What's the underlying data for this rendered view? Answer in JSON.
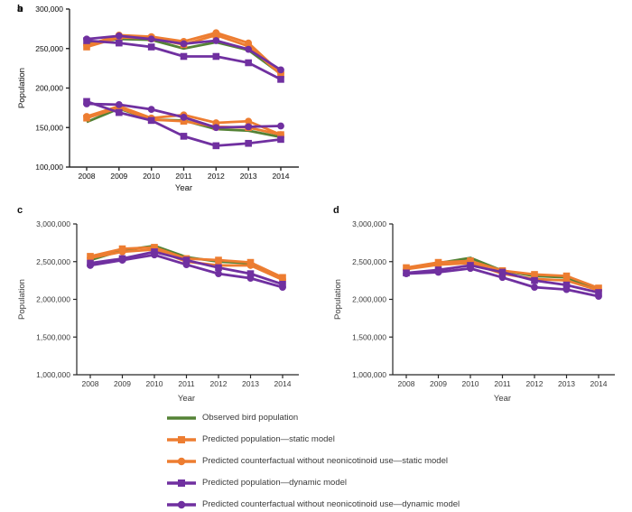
{
  "figure": {
    "xlabel": "Year",
    "ylabel": "Population",
    "colors": {
      "observed_green": "#548235",
      "static_orange": "#ED7D31",
      "dynamic_purple": "#7030A0",
      "axis": "#262626"
    }
  },
  "legend": {
    "items": [
      {
        "label": "Observed bird population",
        "color": "#548235",
        "marker": "none"
      },
      {
        "label": "Predicted population—static model",
        "color": "#ED7D31",
        "marker": "square"
      },
      {
        "label": "Predicted counterfactual without neonicotinoid use—static model",
        "color": "#ED7D31",
        "marker": "circle"
      },
      {
        "label": "Predicted population—dynamic model",
        "color": "#7030A0",
        "marker": "square"
      },
      {
        "label": "Predicted counterfactual without neonicotinoid use—dynamic model",
        "color": "#7030A0",
        "marker": "circle"
      }
    ]
  },
  "chart_data": [
    {
      "panel_label": "a",
      "type": "line",
      "xlabel": "Year",
      "ylabel": "Population",
      "x": [
        2008,
        2009,
        2010,
        2011,
        2012,
        2013,
        2014
      ],
      "ylim": [
        100000,
        300000
      ],
      "yticks": [
        100000,
        150000,
        200000,
        250000,
        300000
      ],
      "grid": false,
      "series": [
        {
          "name": "Observed bird population",
          "color": "#548235",
          "marker": "none",
          "values": [
            157000,
            174000,
            160000,
            159000,
            148000,
            146000,
            138000
          ]
        },
        {
          "name": "Predicted population—static model",
          "color": "#ED7D31",
          "marker": "square",
          "values": [
            162000,
            175000,
            160000,
            158000,
            151000,
            150000,
            141000
          ]
        },
        {
          "name": "Predicted counterfactual without neonicotinoid use—static model",
          "color": "#ED7D31",
          "marker": "circle",
          "values": [
            164000,
            177000,
            162000,
            166000,
            156000,
            158000,
            141000
          ]
        },
        {
          "name": "Predicted population—dynamic model",
          "color": "#7030A0",
          "marker": "square",
          "values": [
            183000,
            169000,
            159000,
            139000,
            127000,
            130000,
            135000
          ]
        },
        {
          "name": "Predicted counterfactual without neonicotinoid use—dynamic model",
          "color": "#7030A0",
          "marker": "circle",
          "values": [
            180000,
            179000,
            173000,
            163000,
            150000,
            151000,
            152000
          ]
        }
      ]
    },
    {
      "panel_label": "b",
      "type": "line",
      "xlabel": "Year",
      "ylabel": "Population",
      "x": [
        2008,
        2009,
        2010,
        2011,
        2012,
        2013,
        2014
      ],
      "ylim": [
        100000,
        300000
      ],
      "yticks": [
        100000,
        150000,
        200000,
        250000,
        300000
      ],
      "grid": false,
      "series": [
        {
          "name": "Observed bird population",
          "color": "#548235",
          "marker": "none",
          "values": [
            257000,
            262000,
            261000,
            250000,
            258000,
            248000,
            218000
          ]
        },
        {
          "name": "Predicted population—static model",
          "color": "#ED7D31",
          "marker": "square",
          "values": [
            252000,
            264000,
            263000,
            255000,
            267000,
            253000,
            217000
          ]
        },
        {
          "name": "Predicted counterfactual without neonicotinoid use—static model",
          "color": "#ED7D31",
          "marker": "circle",
          "values": [
            254000,
            267000,
            265000,
            259000,
            270000,
            257000,
            219000
          ]
        },
        {
          "name": "Predicted population—dynamic model",
          "color": "#7030A0",
          "marker": "square",
          "values": [
            260000,
            257000,
            252000,
            240000,
            240000,
            232000,
            211000
          ]
        },
        {
          "name": "Predicted counterfactual without neonicotinoid use—dynamic model",
          "color": "#7030A0",
          "marker": "circle",
          "values": [
            262000,
            266000,
            262000,
            256000,
            260000,
            249000,
            223000
          ]
        }
      ]
    },
    {
      "panel_label": "c",
      "type": "line",
      "xlabel": "Year",
      "ylabel": "Population",
      "x": [
        2008,
        2009,
        2010,
        2011,
        2012,
        2013,
        2014
      ],
      "ylim": [
        1000000,
        3000000
      ],
      "yticks": [
        1000000,
        1500000,
        2000000,
        2500000,
        3000000
      ],
      "grid": false,
      "series": [
        {
          "name": "Observed bird population",
          "color": "#548235",
          "marker": "none",
          "values": [
            2520000,
            2650000,
            2710000,
            2560000,
            2500000,
            2480000,
            2270000
          ]
        },
        {
          "name": "Predicted population—static model",
          "color": "#ED7D31",
          "marker": "square",
          "values": [
            2570000,
            2670000,
            2690000,
            2540000,
            2520000,
            2490000,
            2290000
          ]
        },
        {
          "name": "Predicted counterfactual without neonicotinoid use—static model",
          "color": "#ED7D31",
          "marker": "circle",
          "values": [
            2550000,
            2630000,
            2660000,
            2500000,
            2450000,
            2450000,
            2260000
          ]
        },
        {
          "name": "Predicted population—dynamic model",
          "color": "#7030A0",
          "marker": "square",
          "values": [
            2480000,
            2540000,
            2630000,
            2520000,
            2420000,
            2340000,
            2200000
          ]
        },
        {
          "name": "Predicted counterfactual without neonicotinoid use—dynamic model",
          "color": "#7030A0",
          "marker": "circle",
          "values": [
            2450000,
            2520000,
            2590000,
            2460000,
            2340000,
            2280000,
            2160000
          ]
        }
      ]
    },
    {
      "panel_label": "d",
      "type": "line",
      "xlabel": "Year",
      "ylabel": "Population",
      "x": [
        2008,
        2009,
        2010,
        2011,
        2012,
        2013,
        2014
      ],
      "ylim": [
        1000000,
        3000000
      ],
      "yticks": [
        1000000,
        1500000,
        2000000,
        2500000,
        3000000
      ],
      "grid": false,
      "series": [
        {
          "name": "Observed bird population",
          "color": "#548235",
          "marker": "none",
          "values": [
            2400000,
            2480000,
            2550000,
            2380000,
            2310000,
            2290000,
            2130000
          ]
        },
        {
          "name": "Predicted population—static model",
          "color": "#ED7D31",
          "marker": "square",
          "values": [
            2420000,
            2490000,
            2510000,
            2380000,
            2330000,
            2310000,
            2150000
          ]
        },
        {
          "name": "Predicted counterfactual without neonicotinoid use—static model",
          "color": "#ED7D31",
          "marker": "circle",
          "values": [
            2400000,
            2460000,
            2480000,
            2340000,
            2270000,
            2250000,
            2120000
          ]
        },
        {
          "name": "Predicted population—dynamic model",
          "color": "#7030A0",
          "marker": "square",
          "values": [
            2350000,
            2390000,
            2450000,
            2360000,
            2250000,
            2190000,
            2090000
          ]
        },
        {
          "name": "Predicted counterfactual without neonicotinoid use—dynamic model",
          "color": "#7030A0",
          "marker": "circle",
          "values": [
            2340000,
            2360000,
            2410000,
            2290000,
            2160000,
            2130000,
            2040000
          ]
        }
      ]
    }
  ]
}
